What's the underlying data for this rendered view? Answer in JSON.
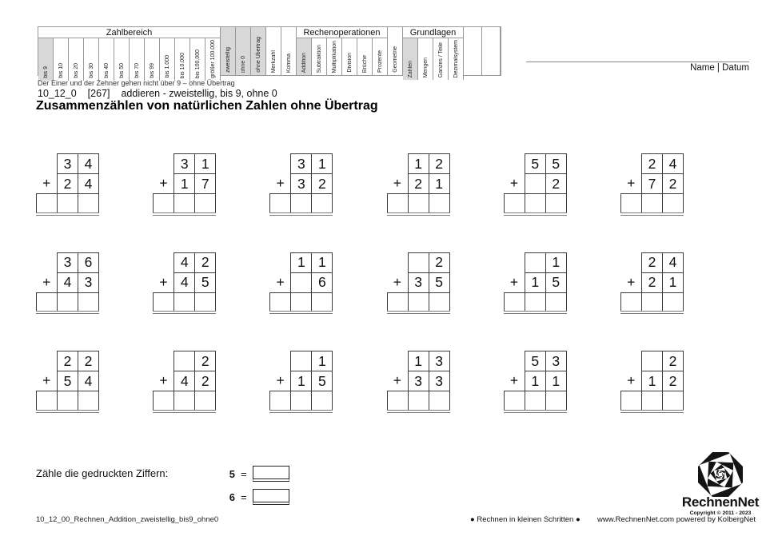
{
  "page": {
    "name_datum_label": "Name | Datum"
  },
  "colors": {
    "shaded_cell": "#d8d8d8",
    "grid_border": "#999999",
    "box_border": "#3c3c3c"
  },
  "criteria_table": {
    "sections": [
      {
        "type": "group",
        "label": "Zahlbereich",
        "columns": [
          {
            "label": "bis 9",
            "shaded": true
          },
          {
            "label": "bis 10"
          },
          {
            "label": "bis 20"
          },
          {
            "label": "bis 30"
          },
          {
            "label": "bis 40"
          },
          {
            "label": "bis 50"
          },
          {
            "label": "bis 70"
          },
          {
            "label": "bis 99"
          },
          {
            "label": "bis 1.000"
          },
          {
            "label": "bis 10.000"
          },
          {
            "label": "bis 100.000"
          },
          {
            "label": "größer 100.000"
          }
        ]
      },
      {
        "type": "tall",
        "columns": [
          {
            "label": "zweistellig",
            "shaded": true
          },
          {
            "label": "ohne 0",
            "shaded": true
          },
          {
            "label": "ohne Übertrag",
            "shaded": true
          },
          {
            "label": "Merkzahl"
          },
          {
            "label": "Komma"
          }
        ]
      },
      {
        "type": "group",
        "label": "Rechenoperationen",
        "columns": [
          {
            "label": "Addition",
            "shaded": true
          },
          {
            "label": "Subtraktion"
          },
          {
            "label": "Multiplikation"
          },
          {
            "label": "Division"
          },
          {
            "label": "Brüche"
          },
          {
            "label": "Prozente"
          }
        ]
      },
      {
        "type": "tall",
        "columns": [
          {
            "label": "Geometrie"
          }
        ]
      },
      {
        "type": "group",
        "label": "Grundlagen",
        "columns": [
          {
            "label": "Zahlen",
            "shaded": true
          },
          {
            "label": "Mengen"
          },
          {
            "label": "Ganzes / Teile"
          },
          {
            "label": "Dezimalsystem"
          }
        ]
      },
      {
        "type": "tall",
        "wide": true,
        "columns": [
          {
            "label": ""
          },
          {
            "label": ""
          }
        ]
      }
    ]
  },
  "meta": {
    "subtitle": "Der Einer und der Zehner gehen nicht über 9 – ohne Übertrag",
    "code": "10_12_0",
    "ref": "[267]",
    "desc": "addieren - zweistellig, bis 9, ohne 0",
    "title": "Zusammenzählen von natürlichen Zahlen ohne Übertrag"
  },
  "problems": {
    "plus_sign": "+",
    "rows": [
      [
        {
          "top": [
            "3",
            "4"
          ],
          "bottom": [
            "2",
            "4"
          ]
        },
        {
          "top": [
            "3",
            "1"
          ],
          "bottom": [
            "1",
            "7"
          ]
        },
        {
          "top": [
            "3",
            "1"
          ],
          "bottom": [
            "3",
            "2"
          ]
        },
        {
          "top": [
            "1",
            "2"
          ],
          "bottom": [
            "2",
            "1"
          ]
        },
        {
          "top": [
            "5",
            "5"
          ],
          "bottom": [
            "",
            "2"
          ]
        },
        {
          "top": [
            "2",
            "4"
          ],
          "bottom": [
            "7",
            "2"
          ]
        }
      ],
      [
        {
          "top": [
            "3",
            "6"
          ],
          "bottom": [
            "4",
            "3"
          ]
        },
        {
          "top": [
            "4",
            "2"
          ],
          "bottom": [
            "4",
            "5"
          ]
        },
        {
          "top": [
            "1",
            "1"
          ],
          "bottom": [
            "",
            "6"
          ]
        },
        {
          "top": [
            "",
            "2"
          ],
          "bottom": [
            "3",
            "5"
          ]
        },
        {
          "top": [
            "",
            "1"
          ],
          "bottom": [
            "1",
            "5"
          ]
        },
        {
          "top": [
            "2",
            "4"
          ],
          "bottom": [
            "2",
            "1"
          ]
        }
      ],
      [
        {
          "top": [
            "2",
            "2"
          ],
          "bottom": [
            "5",
            "4"
          ]
        },
        {
          "top": [
            "",
            "2"
          ],
          "bottom": [
            "4",
            "2"
          ]
        },
        {
          "top": [
            "",
            "1"
          ],
          "bottom": [
            "1",
            "5"
          ]
        },
        {
          "top": [
            "1",
            "3"
          ],
          "bottom": [
            "3",
            "3"
          ]
        },
        {
          "top": [
            "5",
            "3"
          ],
          "bottom": [
            "1",
            "1"
          ]
        },
        {
          "top": [
            "",
            "2"
          ],
          "bottom": [
            "1",
            "2"
          ]
        }
      ]
    ]
  },
  "count_task": {
    "prompt": "Zähle die gedruckten Ziffern:",
    "items": [
      {
        "digit": "5",
        "equals": "="
      },
      {
        "digit": "6",
        "equals": "="
      }
    ]
  },
  "footer": {
    "left": "10_12_00_Rechnen_Addition_zweistellig_bis9_ohne0",
    "center": "● Rechnen in kleinen Schritten ●",
    "right": "www.RechnenNet.com powered by KolbergNet",
    "logo_text": "RechnenNet",
    "copyright": "Copyright © 2011 - 2023"
  }
}
